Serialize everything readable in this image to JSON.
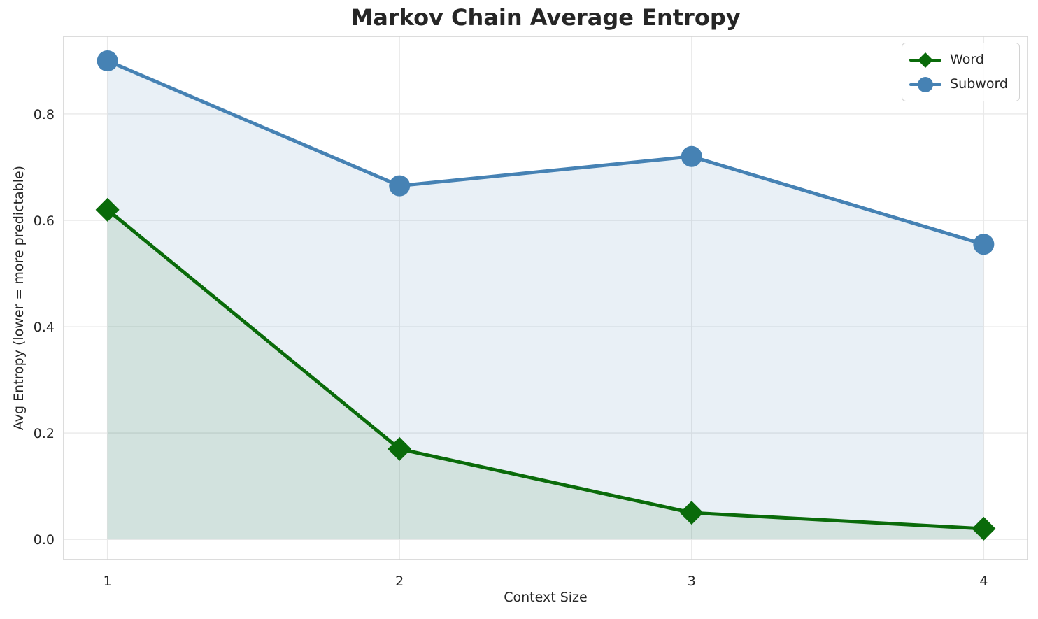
{
  "chart_data": {
    "type": "line",
    "title": "Markov Chain Average Entropy",
    "xlabel": "Context Size",
    "ylabel": "Avg Entropy (lower = more predictable)",
    "categories": [
      1,
      2,
      3,
      4
    ],
    "x_tick_labels": [
      "1",
      "2",
      "3",
      "4"
    ],
    "y_tick_labels": [
      "0.0",
      "0.2",
      "0.4",
      "0.6",
      "0.8"
    ],
    "y_tick_values": [
      0.0,
      0.2,
      0.4,
      0.6,
      0.8
    ],
    "series": [
      {
        "name": "Word",
        "marker": "diamond",
        "color": "#0a6b0a",
        "fill_color": "rgba(10,107,10,0.10)",
        "values": [
          0.62,
          0.17,
          0.05,
          0.02
        ]
      },
      {
        "name": "Subword",
        "marker": "circle",
        "color": "#4682b4",
        "fill_color": "rgba(70,130,180,0.12)",
        "values": [
          0.9,
          0.665,
          0.72,
          0.555
        ]
      }
    ],
    "area_fill_to": 0,
    "xlim": [
      0.85,
      4.15
    ],
    "ylim": [
      -0.038,
      0.946
    ],
    "grid": true,
    "legend_position": "upper right",
    "grid_color": "#e9e9e9",
    "spine_color": "#d4d4d4",
    "tick_color": "#262626"
  }
}
